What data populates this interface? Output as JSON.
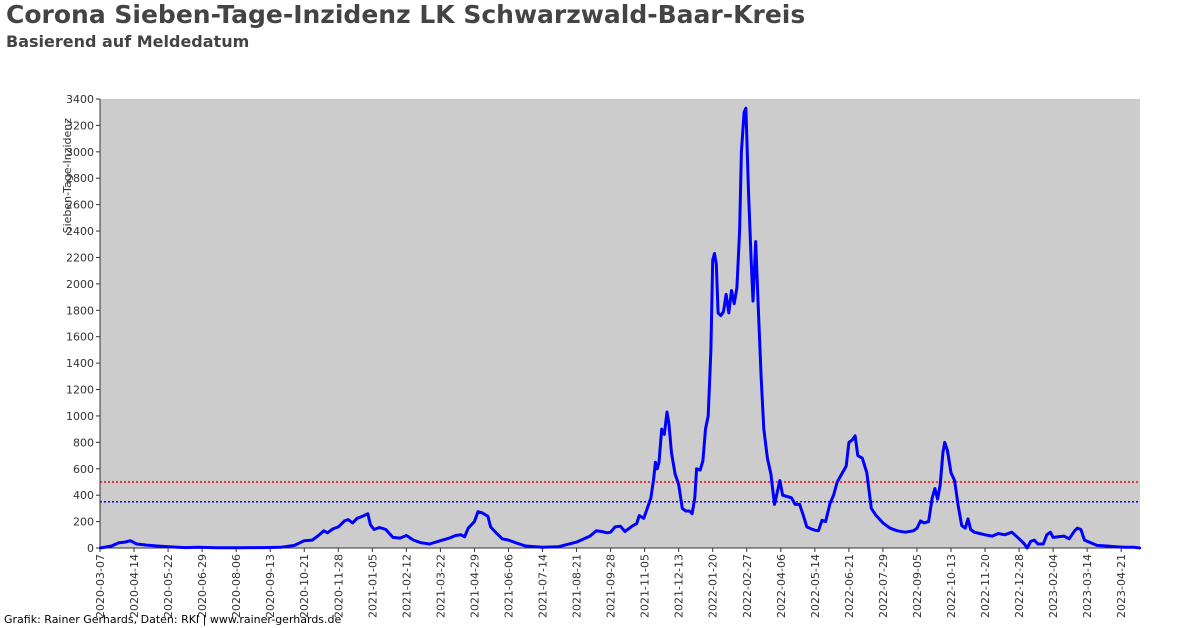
{
  "title": "Corona Sieben-Tage-Inzidenz LK Schwarzwald-Baar-Kreis",
  "subtitle": "Basierend auf Meldedatum",
  "footer": "Grafik: Rainer Gerhards, Daten: RKI | www.rainer-gerhards.de",
  "colors": {
    "plot_background": "#cccccc",
    "series": "#0000ff",
    "threshold_red": "#ff0000",
    "threshold_blue": "#0000ff"
  },
  "chart_data": {
    "type": "line",
    "title": "Corona Sieben-Tage-Inzidenz LK Schwarzwald-Baar-Kreis",
    "subtitle": "Basierend auf Meldedatum",
    "ylabel": "Sieben-Tage-Inzidenz",
    "xlabel": "",
    "ylim": [
      0,
      3400
    ],
    "xlim": [
      "2020-03-07",
      "2023-05-12"
    ],
    "y_ticks": [
      0,
      200,
      400,
      600,
      800,
      1000,
      1200,
      1400,
      1600,
      1800,
      2000,
      2200,
      2400,
      2600,
      2800,
      3000,
      3200,
      3400
    ],
    "x_ticks": [
      "2020-03-07",
      "2020-04-14",
      "2020-05-22",
      "2020-06-29",
      "2020-08-06",
      "2020-09-13",
      "2020-10-21",
      "2020-11-28",
      "2021-01-05",
      "2021-02-12",
      "2021-03-22",
      "2021-04-29",
      "2021-06-06",
      "2021-07-14",
      "2021-08-21",
      "2021-09-28",
      "2021-11-05",
      "2021-12-13",
      "2022-01-20",
      "2022-02-27",
      "2022-04-06",
      "2022-05-14",
      "2022-06-21",
      "2022-07-29",
      "2022-09-05",
      "2022-10-13",
      "2022-11-20",
      "2022-12-28",
      "2023-02-04",
      "2023-03-14",
      "2023-04-21"
    ],
    "grid": false,
    "reference_lines": [
      {
        "y": 500,
        "color": "#ff0000",
        "style": "dotted"
      },
      {
        "y": 350,
        "color": "#0000ff",
        "style": "dotted"
      }
    ],
    "series": [
      {
        "points": [
          [
            "2020-03-07",
            0
          ],
          [
            "2020-03-20",
            15
          ],
          [
            "2020-03-28",
            40
          ],
          [
            "2020-04-04",
            45
          ],
          [
            "2020-04-10",
            55
          ],
          [
            "2020-04-17",
            30
          ],
          [
            "2020-04-28",
            22
          ],
          [
            "2020-05-10",
            15
          ],
          [
            "2020-05-25",
            8
          ],
          [
            "2020-06-10",
            3
          ],
          [
            "2020-06-25",
            5
          ],
          [
            "2020-07-15",
            2
          ],
          [
            "2020-08-10",
            2
          ],
          [
            "2020-09-05",
            3
          ],
          [
            "2020-09-25",
            5
          ],
          [
            "2020-10-10",
            20
          ],
          [
            "2020-10-21",
            55
          ],
          [
            "2020-10-30",
            60
          ],
          [
            "2020-11-05",
            90
          ],
          [
            "2020-11-12",
            130
          ],
          [
            "2020-11-16",
            115
          ],
          [
            "2020-11-22",
            145
          ],
          [
            "2020-11-28",
            160
          ],
          [
            "2020-12-05",
            205
          ],
          [
            "2020-12-09",
            215
          ],
          [
            "2020-12-14",
            190
          ],
          [
            "2020-12-19",
            225
          ],
          [
            "2020-12-25",
            240
          ],
          [
            "2020-12-31",
            260
          ],
          [
            "2021-01-03",
            175
          ],
          [
            "2021-01-07",
            140
          ],
          [
            "2021-01-13",
            155
          ],
          [
            "2021-01-20",
            140
          ],
          [
            "2021-01-28",
            80
          ],
          [
            "2021-02-05",
            75
          ],
          [
            "2021-02-12",
            95
          ],
          [
            "2021-02-20",
            60
          ],
          [
            "2021-02-28",
            40
          ],
          [
            "2021-03-10",
            30
          ],
          [
            "2021-03-22",
            55
          ],
          [
            "2021-04-01",
            75
          ],
          [
            "2021-04-08",
            95
          ],
          [
            "2021-04-14",
            100
          ],
          [
            "2021-04-18",
            85
          ],
          [
            "2021-04-22",
            150
          ],
          [
            "2021-04-29",
            200
          ],
          [
            "2021-05-03",
            275
          ],
          [
            "2021-05-08",
            265
          ],
          [
            "2021-05-14",
            240
          ],
          [
            "2021-05-17",
            160
          ],
          [
            "2021-05-24",
            110
          ],
          [
            "2021-05-30",
            70
          ],
          [
            "2021-06-06",
            60
          ],
          [
            "2021-06-14",
            40
          ],
          [
            "2021-06-25",
            15
          ],
          [
            "2021-07-14",
            5
          ],
          [
            "2021-08-01",
            10
          ],
          [
            "2021-08-21",
            45
          ],
          [
            "2021-09-05",
            90
          ],
          [
            "2021-09-12",
            130
          ],
          [
            "2021-09-18",
            125
          ],
          [
            "2021-09-24",
            115
          ],
          [
            "2021-09-28",
            120
          ],
          [
            "2021-10-03",
            160
          ],
          [
            "2021-10-09",
            165
          ],
          [
            "2021-10-14",
            125
          ],
          [
            "2021-10-22",
            165
          ],
          [
            "2021-10-27",
            185
          ],
          [
            "2021-10-30",
            245
          ],
          [
            "2021-11-04",
            225
          ],
          [
            "2021-11-08",
            300
          ],
          [
            "2021-11-12",
            380
          ],
          [
            "2021-11-15",
            520
          ],
          [
            "2021-11-17",
            650
          ],
          [
            "2021-11-19",
            600
          ],
          [
            "2021-11-21",
            650
          ],
          [
            "2021-11-24",
            900
          ],
          [
            "2021-11-27",
            860
          ],
          [
            "2021-11-30",
            1030
          ],
          [
            "2021-12-02",
            950
          ],
          [
            "2021-12-05",
            720
          ],
          [
            "2021-12-09",
            560
          ],
          [
            "2021-12-13",
            480
          ],
          [
            "2021-12-17",
            300
          ],
          [
            "2021-12-21",
            280
          ],
          [
            "2021-12-25",
            280
          ],
          [
            "2021-12-28",
            260
          ],
          [
            "2021-12-31",
            380
          ],
          [
            "2022-01-02",
            600
          ],
          [
            "2022-01-06",
            590
          ],
          [
            "2022-01-09",
            660
          ],
          [
            "2022-01-12",
            900
          ],
          [
            "2022-01-15",
            1000
          ],
          [
            "2022-01-18",
            1500
          ],
          [
            "2022-01-20",
            2180
          ],
          [
            "2022-01-22",
            2230
          ],
          [
            "2022-01-24",
            2150
          ],
          [
            "2022-01-26",
            1780
          ],
          [
            "2022-01-29",
            1760
          ],
          [
            "2022-02-01",
            1790
          ],
          [
            "2022-02-04",
            1920
          ],
          [
            "2022-02-07",
            1780
          ],
          [
            "2022-02-10",
            1950
          ],
          [
            "2022-02-13",
            1850
          ],
          [
            "2022-02-16",
            1970
          ],
          [
            "2022-02-19",
            2400
          ],
          [
            "2022-02-21",
            3000
          ],
          [
            "2022-02-24",
            3300
          ],
          [
            "2022-02-26",
            3330
          ],
          [
            "2022-03-01",
            2700
          ],
          [
            "2022-03-04",
            2170
          ],
          [
            "2022-03-06",
            1870
          ],
          [
            "2022-03-09",
            2320
          ],
          [
            "2022-03-12",
            1800
          ],
          [
            "2022-03-15",
            1300
          ],
          [
            "2022-03-18",
            900
          ],
          [
            "2022-03-22",
            680
          ],
          [
            "2022-03-26",
            560
          ],
          [
            "2022-03-30",
            330
          ],
          [
            "2022-04-02",
            420
          ],
          [
            "2022-04-05",
            510
          ],
          [
            "2022-04-08",
            400
          ],
          [
            "2022-04-13",
            390
          ],
          [
            "2022-04-18",
            380
          ],
          [
            "2022-04-22",
            330
          ],
          [
            "2022-04-27",
            330
          ],
          [
            "2022-05-01",
            250
          ],
          [
            "2022-05-05",
            160
          ],
          [
            "2022-05-10",
            145
          ],
          [
            "2022-05-14",
            135
          ],
          [
            "2022-05-18",
            130
          ],
          [
            "2022-05-22",
            210
          ],
          [
            "2022-05-26",
            200
          ],
          [
            "2022-05-31",
            340
          ],
          [
            "2022-06-04",
            400
          ],
          [
            "2022-06-08",
            500
          ],
          [
            "2022-06-13",
            560
          ],
          [
            "2022-06-18",
            620
          ],
          [
            "2022-06-21",
            800
          ],
          [
            "2022-06-25",
            820
          ],
          [
            "2022-06-28",
            850
          ],
          [
            "2022-07-01",
            700
          ],
          [
            "2022-07-06",
            680
          ],
          [
            "2022-07-11",
            570
          ],
          [
            "2022-07-16",
            300
          ],
          [
            "2022-07-21",
            250
          ],
          [
            "2022-07-29",
            190
          ],
          [
            "2022-08-06",
            150
          ],
          [
            "2022-08-14",
            130
          ],
          [
            "2022-08-23",
            120
          ],
          [
            "2022-09-01",
            130
          ],
          [
            "2022-09-05",
            150
          ],
          [
            "2022-09-09",
            205
          ],
          [
            "2022-09-13",
            190
          ],
          [
            "2022-09-18",
            200
          ],
          [
            "2022-09-22",
            380
          ],
          [
            "2022-09-25",
            450
          ],
          [
            "2022-09-28",
            370
          ],
          [
            "2022-10-01",
            480
          ],
          [
            "2022-10-04",
            720
          ],
          [
            "2022-10-06",
            800
          ],
          [
            "2022-10-09",
            740
          ],
          [
            "2022-10-13",
            570
          ],
          [
            "2022-10-17",
            510
          ],
          [
            "2022-10-21",
            320
          ],
          [
            "2022-10-25",
            170
          ],
          [
            "2022-10-29",
            150
          ],
          [
            "2022-11-01",
            220
          ],
          [
            "2022-11-04",
            140
          ],
          [
            "2022-11-08",
            120
          ],
          [
            "2022-11-14",
            110
          ],
          [
            "2022-11-20",
            100
          ],
          [
            "2022-11-28",
            90
          ],
          [
            "2022-12-05",
            110
          ],
          [
            "2022-12-12",
            100
          ],
          [
            "2022-12-20",
            120
          ],
          [
            "2022-12-28",
            70
          ],
          [
            "2023-01-03",
            30
          ],
          [
            "2023-01-06",
            0
          ],
          [
            "2023-01-10",
            50
          ],
          [
            "2023-01-14",
            60
          ],
          [
            "2023-01-18",
            30
          ],
          [
            "2023-01-24",
            30
          ],
          [
            "2023-01-28",
            100
          ],
          [
            "2023-02-01",
            120
          ],
          [
            "2023-02-04",
            80
          ],
          [
            "2023-02-10",
            85
          ],
          [
            "2023-02-16",
            90
          ],
          [
            "2023-02-22",
            70
          ],
          [
            "2023-02-28",
            130
          ],
          [
            "2023-03-03",
            150
          ],
          [
            "2023-03-07",
            140
          ],
          [
            "2023-03-11",
            60
          ],
          [
            "2023-03-18",
            40
          ],
          [
            "2023-03-25",
            20
          ],
          [
            "2023-04-05",
            15
          ],
          [
            "2023-04-15",
            10
          ],
          [
            "2023-04-25",
            5
          ],
          [
            "2023-05-05",
            5
          ],
          [
            "2023-05-12",
            0
          ]
        ]
      }
    ]
  }
}
